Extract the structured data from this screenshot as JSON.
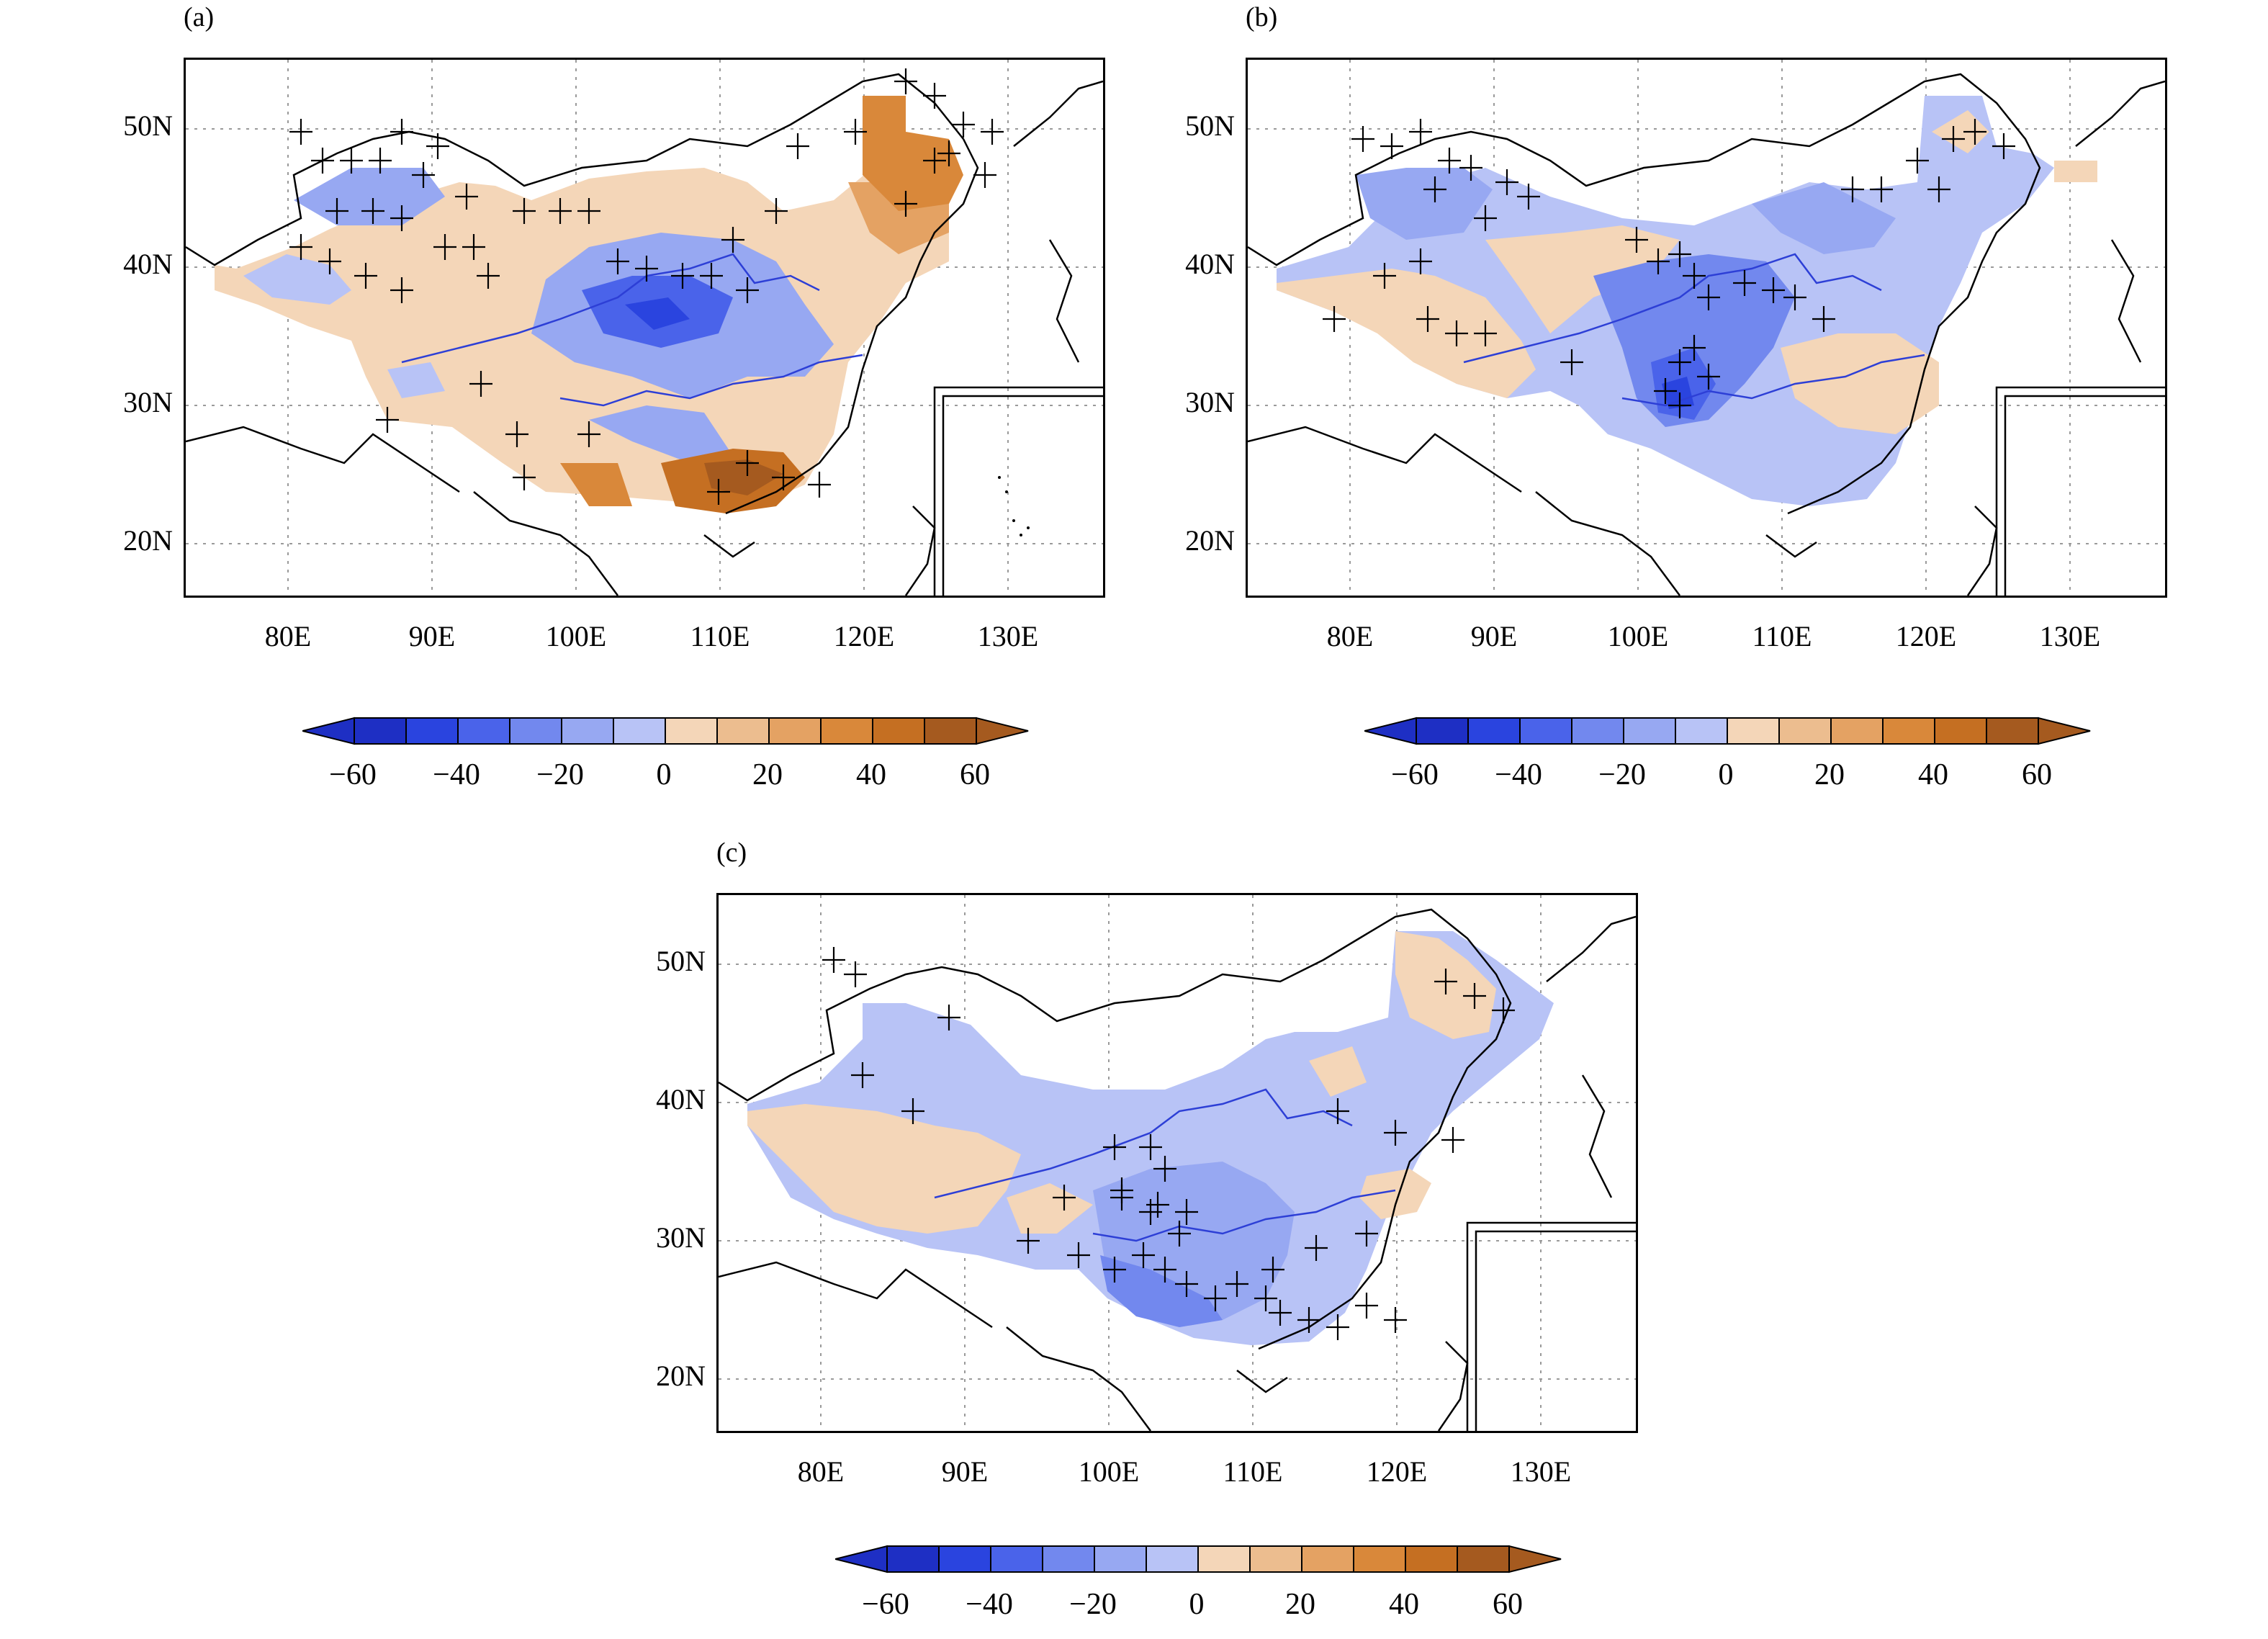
{
  "panels": [
    {
      "label": "(a)"
    },
    {
      "label": "(b)"
    },
    {
      "label": "(c)"
    }
  ],
  "map": {
    "lat_labels": [
      "50N",
      "40N",
      "30N",
      "20N"
    ],
    "lon_labels": [
      "80E",
      "90E",
      "100E",
      "110E",
      "120E",
      "130E"
    ]
  },
  "colorbar": {
    "tick_labels": [
      "−60",
      "−40",
      "−20",
      "0",
      "20",
      "40",
      "60"
    ],
    "colors": [
      "#1e2fc4",
      "#2a44df",
      "#4a63ea",
      "#7288ee",
      "#97a8f2",
      "#b8c3f6",
      "#f4d6b8",
      "#ecbd8f",
      "#e4a263",
      "#d9883a",
      "#c56f22",
      "#a55a1f"
    ]
  },
  "colors": {
    "blue_light": "#b8c3f6",
    "blue_mid": "#97a8f2",
    "blue_dark": "#4a63ea",
    "blue_deep": "#2a44df",
    "orange_light": "#f4d6b8",
    "orange_mid": "#e4a263",
    "orange_dark": "#c56f22",
    "river": "#2d3fd6"
  }
}
